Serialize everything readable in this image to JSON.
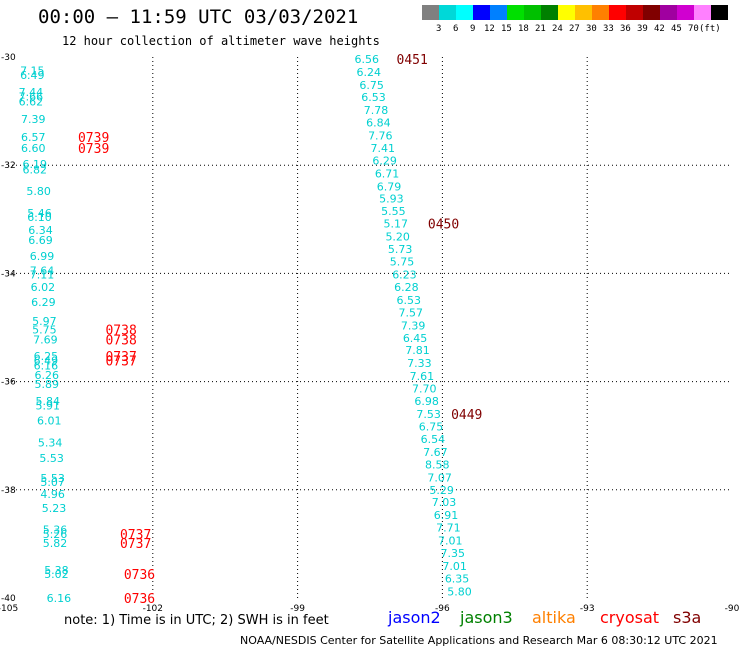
{
  "title": "00:00 – 11:59 UTC 03/03/2021",
  "subtitle": "12 hour collection of altimeter wave heights",
  "colorbar": {
    "colors": [
      "#808080",
      "#00d8d8",
      "#00ffff",
      "#0000ff",
      "#0080ff",
      "#00e000",
      "#00c000",
      "#008000",
      "#ffff00",
      "#ffc000",
      "#ff8000",
      "#ff0000",
      "#c00000",
      "#800000",
      "#a000a0",
      "#d000d0",
      "#ff80ff",
      "#000000"
    ],
    "labels": [
      "3",
      "6",
      "9",
      "12",
      "15",
      "18",
      "21",
      "24",
      "27",
      "30",
      "33",
      "36",
      "39",
      "42",
      "45",
      "70",
      "(ft)"
    ]
  },
  "note": "note:  1) Time is in UTC;  2) SWH is in feet",
  "satellites": [
    {
      "name": "jason2",
      "color": "#0000ff"
    },
    {
      "name": "jason3",
      "color": "#008000"
    },
    {
      "name": "altika",
      "color": "#ff8000"
    },
    {
      "name": "cryosat",
      "color": "#ff0000"
    },
    {
      "name": "s3a",
      "color": "#800000"
    }
  ],
  "footer": "NOAA/NESDIS Center for Satellite Applications and Research    Mar  6 08:30:12 UTC 2021",
  "chart_data": {
    "type": "scatter",
    "title": "00:00 – 11:59 UTC 03/03/2021",
    "subtitle": "12 hour collection of altimeter wave heights",
    "xlim": [
      -105,
      -90
    ],
    "ylim": [
      -40,
      -30
    ],
    "xticks": [
      "-105",
      "-102",
      "-99",
      "-96",
      "-93",
      "-90"
    ],
    "yticks": [
      "-30",
      "-32",
      "-34",
      "-36",
      "-38",
      "-40"
    ],
    "grid": true,
    "points": [
      {
        "lon": -104.75,
        "lat": -30.25,
        "v": "7.15"
      },
      {
        "lon": -104.75,
        "lat": -30.33,
        "v": "6.49"
      },
      {
        "lon": -104.78,
        "lat": -30.65,
        "v": "7.44"
      },
      {
        "lon": -104.78,
        "lat": -30.73,
        "v": "7.66"
      },
      {
        "lon": -104.78,
        "lat": -30.82,
        "v": "6.62"
      },
      {
        "lon": -104.73,
        "lat": -31.15,
        "v": "7.39"
      },
      {
        "lon": -104.73,
        "lat": -31.48,
        "v": "6.57"
      },
      {
        "lon": -104.73,
        "lat": -31.68,
        "v": "6.60"
      },
      {
        "lon": -104.7,
        "lat": -31.98,
        "v": "6.19"
      },
      {
        "lon": -104.7,
        "lat": -32.08,
        "v": "6.82"
      },
      {
        "lon": -104.62,
        "lat": -32.48,
        "v": "5.80"
      },
      {
        "lon": -104.6,
        "lat": -32.88,
        "v": "5.46"
      },
      {
        "lon": -104.6,
        "lat": -32.96,
        "v": "6.10"
      },
      {
        "lon": -104.58,
        "lat": -33.2,
        "v": "6.34"
      },
      {
        "lon": -104.58,
        "lat": -33.38,
        "v": "6.69"
      },
      {
        "lon": -104.55,
        "lat": -33.68,
        "v": "6.99"
      },
      {
        "lon": -104.55,
        "lat": -33.95,
        "v": "7.64"
      },
      {
        "lon": -104.55,
        "lat": -34.02,
        "v": "7.11"
      },
      {
        "lon": -104.53,
        "lat": -34.25,
        "v": "6.02"
      },
      {
        "lon": -104.52,
        "lat": -34.53,
        "v": "6.29"
      },
      {
        "lon": -104.5,
        "lat": -34.88,
        "v": "5.97"
      },
      {
        "lon": -104.5,
        "lat": -35.04,
        "v": "5.75"
      },
      {
        "lon": -104.48,
        "lat": -35.22,
        "v": "7.69"
      },
      {
        "lon": -104.47,
        "lat": -35.53,
        "v": "6.25"
      },
      {
        "lon": -104.47,
        "lat": -35.61,
        "v": "6.49"
      },
      {
        "lon": -104.47,
        "lat": -35.7,
        "v": "6.16"
      },
      {
        "lon": -104.45,
        "lat": -35.88,
        "v": "6.26"
      },
      {
        "lon": -104.45,
        "lat": -36.04,
        "v": "5.89"
      },
      {
        "lon": -104.43,
        "lat": -36.36,
        "v": "5.84"
      },
      {
        "lon": -104.43,
        "lat": -36.44,
        "v": "5.91"
      },
      {
        "lon": -104.4,
        "lat": -36.72,
        "v": "6.01"
      },
      {
        "lon": -104.38,
        "lat": -37.13,
        "v": "5.34"
      },
      {
        "lon": -104.35,
        "lat": -37.41,
        "v": "5.53"
      },
      {
        "lon": -104.33,
        "lat": -37.78,
        "v": "5.53"
      },
      {
        "lon": -104.33,
        "lat": -37.86,
        "v": "5.07"
      },
      {
        "lon": -104.33,
        "lat": -38.08,
        "v": "4.96"
      },
      {
        "lon": -104.3,
        "lat": -38.34,
        "v": "5.23"
      },
      {
        "lon": -104.28,
        "lat": -38.73,
        "v": "5.36"
      },
      {
        "lon": -104.28,
        "lat": -38.82,
        "v": "5.26"
      },
      {
        "lon": -104.28,
        "lat": -38.98,
        "v": "5.82"
      },
      {
        "lon": -104.25,
        "lat": -39.48,
        "v": "5.38"
      },
      {
        "lon": -104.25,
        "lat": -39.56,
        "v": "5.02"
      },
      {
        "lon": -104.2,
        "lat": -40.0,
        "v": "6.16"
      },
      {
        "lon": -97.82,
        "lat": -30.04,
        "v": "6.56"
      },
      {
        "lon": -97.78,
        "lat": -30.28,
        "v": "6.24"
      },
      {
        "lon": -97.72,
        "lat": -30.52,
        "v": "6.75"
      },
      {
        "lon": -97.68,
        "lat": -30.74,
        "v": "6.53"
      },
      {
        "lon": -97.63,
        "lat": -30.98,
        "v": "7.78"
      },
      {
        "lon": -97.58,
        "lat": -31.21,
        "v": "6.84"
      },
      {
        "lon": -97.54,
        "lat": -31.45,
        "v": "7.76"
      },
      {
        "lon": -97.49,
        "lat": -31.68,
        "v": "7.41"
      },
      {
        "lon": -97.45,
        "lat": -31.91,
        "v": "6.29"
      },
      {
        "lon": -97.4,
        "lat": -32.15,
        "v": "6.71"
      },
      {
        "lon": -97.36,
        "lat": -32.39,
        "v": "6.79"
      },
      {
        "lon": -97.31,
        "lat": -32.62,
        "v": "5.93"
      },
      {
        "lon": -97.27,
        "lat": -32.85,
        "v": "5.55"
      },
      {
        "lon": -97.22,
        "lat": -33.08,
        "v": "5.17"
      },
      {
        "lon": -97.18,
        "lat": -33.32,
        "v": "5.20"
      },
      {
        "lon": -97.13,
        "lat": -33.55,
        "v": "5.73"
      },
      {
        "lon": -97.09,
        "lat": -33.78,
        "v": "5.75"
      },
      {
        "lon": -97.04,
        "lat": -34.02,
        "v": "6.23"
      },
      {
        "lon": -97.0,
        "lat": -34.25,
        "v": "6.28"
      },
      {
        "lon": -96.95,
        "lat": -34.49,
        "v": "6.53"
      },
      {
        "lon": -96.91,
        "lat": -34.72,
        "v": "7.57"
      },
      {
        "lon": -96.86,
        "lat": -34.96,
        "v": "7.39"
      },
      {
        "lon": -96.82,
        "lat": -35.19,
        "v": "6.45"
      },
      {
        "lon": -96.77,
        "lat": -35.42,
        "v": "7.81"
      },
      {
        "lon": -96.73,
        "lat": -35.66,
        "v": "7.33"
      },
      {
        "lon": -96.68,
        "lat": -35.9,
        "v": "7.61"
      },
      {
        "lon": -96.63,
        "lat": -36.13,
        "v": "7.70"
      },
      {
        "lon": -96.58,
        "lat": -36.36,
        "v": "6.98"
      },
      {
        "lon": -96.54,
        "lat": -36.6,
        "v": "7.53"
      },
      {
        "lon": -96.49,
        "lat": -36.83,
        "v": "6.75"
      },
      {
        "lon": -96.45,
        "lat": -37.06,
        "v": "6.54"
      },
      {
        "lon": -96.4,
        "lat": -37.3,
        "v": "7.67"
      },
      {
        "lon": -96.36,
        "lat": -37.53,
        "v": "8.58"
      },
      {
        "lon": -96.31,
        "lat": -37.77,
        "v": "7.07"
      },
      {
        "lon": -96.27,
        "lat": -38.0,
        "v": "5.29"
      },
      {
        "lon": -96.22,
        "lat": -38.23,
        "v": "7.03"
      },
      {
        "lon": -96.18,
        "lat": -38.47,
        "v": "6.91"
      },
      {
        "lon": -96.13,
        "lat": -38.7,
        "v": "7.71"
      },
      {
        "lon": -96.09,
        "lat": -38.94,
        "v": "7.01"
      },
      {
        "lon": -96.04,
        "lat": -39.17,
        "v": "7.35"
      },
      {
        "lon": -96.0,
        "lat": -39.41,
        "v": "7.01"
      },
      {
        "lon": -95.95,
        "lat": -39.64,
        "v": "6.35"
      },
      {
        "lon": -95.9,
        "lat": -39.88,
        "v": "5.80"
      }
    ],
    "time_labels": [
      {
        "lon": -103.55,
        "lat": -31.48,
        "t": "0739",
        "color": "#ff0000"
      },
      {
        "lon": -103.55,
        "lat": -31.68,
        "t": "0739",
        "color": "#ff0000"
      },
      {
        "lon": -102.98,
        "lat": -35.04,
        "t": "0738",
        "color": "#ff0000"
      },
      {
        "lon": -102.98,
        "lat": -35.22,
        "t": "0738",
        "color": "#ff0000"
      },
      {
        "lon": -102.98,
        "lat": -35.53,
        "t": "0737",
        "color": "#ff0000"
      },
      {
        "lon": -102.98,
        "lat": -35.61,
        "t": "0737",
        "color": "#ff0000"
      },
      {
        "lon": -102.68,
        "lat": -38.82,
        "t": "0737",
        "color": "#ff0000"
      },
      {
        "lon": -102.68,
        "lat": -38.98,
        "t": "0737",
        "color": "#ff0000"
      },
      {
        "lon": -102.6,
        "lat": -39.56,
        "t": "0736",
        "color": "#ff0000"
      },
      {
        "lon": -102.6,
        "lat": -40.0,
        "t": "0736",
        "color": "#ff0000"
      },
      {
        "lon": -96.95,
        "lat": -30.04,
        "t": "0451",
        "color": "#800000"
      },
      {
        "lon": -96.3,
        "lat": -33.08,
        "t": "0450",
        "color": "#800000"
      },
      {
        "lon": -95.82,
        "lat": -36.6,
        "t": "0449",
        "color": "#800000"
      }
    ]
  }
}
